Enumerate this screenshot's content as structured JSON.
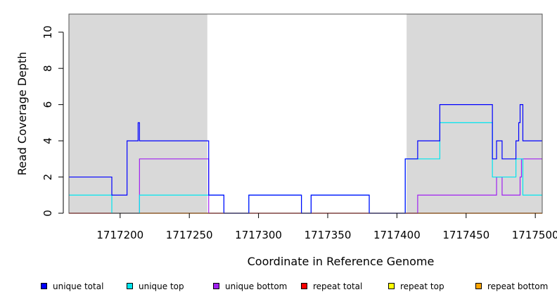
{
  "chart_data": {
    "type": "line",
    "title": "",
    "xlabel": "Coordinate in Reference Genome",
    "ylabel": "Read Coverage Depth",
    "xlim": [
      1717163,
      1717505
    ],
    "ylim": [
      0,
      11
    ],
    "x_ticks": [
      1717200,
      1717250,
      1717300,
      1717350,
      1717400,
      1717450,
      1717500
    ],
    "x_tick_labels": [
      "1717200",
      "1717250",
      "1717300",
      "1717350",
      "1717400",
      "1717450",
      "1717500"
    ],
    "y_ticks": [
      0,
      2,
      4,
      6,
      8,
      10
    ],
    "y_tick_labels": [
      "0",
      "2",
      "4",
      "6",
      "8",
      "10"
    ],
    "shaded_regions": [
      {
        "x_start": 1717163,
        "x_end": 1717263,
        "color": "#d9d9d9"
      },
      {
        "x_start": 1717407,
        "x_end": 1717505,
        "color": "#d9d9d9"
      }
    ],
    "legend_position": "bottom",
    "series": [
      {
        "name": "unique total",
        "color": "#0000ff",
        "step": true,
        "x": [
          1717163,
          1717194,
          1717205,
          1717213,
          1717214,
          1717264,
          1717275,
          1717293,
          1717331,
          1717338,
          1717380,
          1717406,
          1717415,
          1717431,
          1717469,
          1717472,
          1717476,
          1717486,
          1717488,
          1717489,
          1717491,
          1717505
        ],
        "y": [
          2,
          1,
          4,
          5,
          4,
          1,
          0,
          1,
          0,
          1,
          0,
          3,
          4,
          6,
          3,
          4,
          3,
          4,
          5,
          6,
          4,
          4
        ]
      },
      {
        "name": "unique top",
        "color": "#00e5ee",
        "step": true,
        "x": [
          1717163,
          1717194,
          1717214,
          1717264,
          1717275,
          1717293,
          1717331,
          1717338,
          1717380,
          1717406,
          1717431,
          1717469,
          1717486,
          1717491,
          1717505
        ],
        "y": [
          1,
          0,
          1,
          1,
          0,
          1,
          0,
          1,
          0,
          3,
          5,
          2,
          3,
          1,
          1
        ]
      },
      {
        "name": "unique bottom",
        "color": "#a020f0",
        "step": true,
        "x": [
          1717163,
          1717214,
          1717264,
          1717415,
          1717472,
          1717476,
          1717489,
          1717490,
          1717505
        ],
        "y": [
          0,
          3,
          0,
          1,
          2,
          1,
          2,
          3,
          3
        ]
      },
      {
        "name": "repeat total",
        "color": "#ff0000",
        "step": true,
        "x": [
          1717163,
          1717505
        ],
        "y": [
          0,
          0
        ]
      },
      {
        "name": "repeat top",
        "color": "#ffff00",
        "step": true,
        "x": [
          1717163,
          1717505
        ],
        "y": [
          0,
          0
        ]
      },
      {
        "name": "repeat bottom",
        "color": "#ffa500",
        "step": true,
        "x": [
          1717163,
          1717505
        ],
        "y": [
          0,
          0
        ]
      }
    ]
  }
}
